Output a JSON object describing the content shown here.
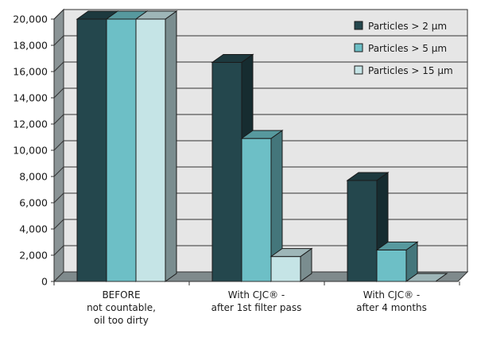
{
  "chart_data": {
    "type": "bar",
    "style": "3d-clustered",
    "categories": [
      [
        "BEFORE",
        "not countable,",
        "oil too dirty"
      ],
      [
        "With CJC® -",
        "after 1st filter pass"
      ],
      [
        "With CJC® -",
        "after 4 months"
      ]
    ],
    "series": [
      {
        "name": "Particles > 2 µm",
        "values": [
          20000,
          16700,
          7700
        ]
      },
      {
        "name": "Particles > 5 µm",
        "values": [
          20000,
          10900,
          2400
        ]
      },
      {
        "name": "Particles > 15 µm",
        "values": [
          20000,
          1900,
          0
        ]
      }
    ],
    "ylim": [
      0,
      20000
    ],
    "ytick_step": 2000,
    "ytick_labels": [
      "0",
      "2,000",
      "4,000",
      "6,000",
      "8,000",
      "10,000",
      "12,000",
      "14,000",
      "16,000",
      "18,000",
      "20,000"
    ],
    "grid": true,
    "legend_position": "top-right",
    "colors": {
      "series": [
        "#24474d",
        "#6dbfc6",
        "#c5e4e6"
      ],
      "walls": "#e6e6e6",
      "side_wall": "#8a9395",
      "floor": "#7f8a8c"
    }
  }
}
